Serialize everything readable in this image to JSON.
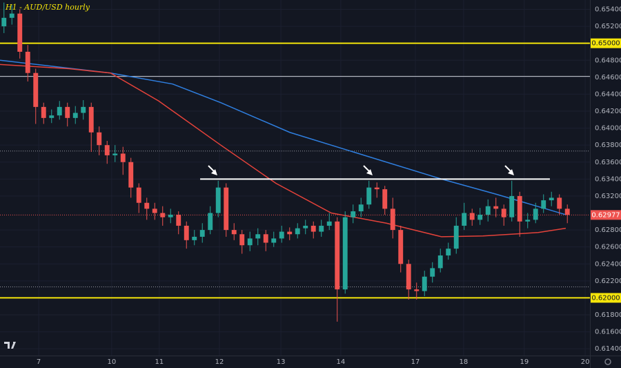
{
  "chart_data": {
    "type": "candlestick",
    "title": "H1 - AUD/USD hourly",
    "up_color": "#26a69a",
    "down_color": "#ef5350",
    "x": [
      2,
      6,
      10,
      14,
      18,
      22,
      26,
      30,
      34,
      38,
      42,
      46,
      50,
      54,
      58,
      62,
      66,
      70,
      74,
      78,
      82,
      86,
      90,
      94,
      98,
      102,
      106,
      110,
      114,
      118,
      122,
      126,
      130,
      134,
      138,
      142,
      146,
      150,
      154,
      158,
      162,
      166,
      170,
      174,
      178,
      182,
      186,
      190,
      194,
      198,
      202,
      206,
      210,
      214,
      218,
      222,
      226,
      230,
      234,
      238,
      242,
      246,
      250,
      254,
      258,
      262,
      266,
      270,
      274,
      278,
      282,
      286
    ],
    "open": [
      0.652,
      0.653,
      0.6535,
      0.649,
      0.6465,
      0.6425,
      0.6412,
      0.6415,
      0.6425,
      0.6412,
      0.6418,
      0.6425,
      0.6395,
      0.638,
      0.6368,
      0.637,
      0.636,
      0.633,
      0.6312,
      0.6305,
      0.63,
      0.6295,
      0.6298,
      0.6285,
      0.6268,
      0.6272,
      0.628,
      0.63,
      0.633,
      0.628,
      0.6275,
      0.6262,
      0.627,
      0.6275,
      0.6265,
      0.627,
      0.6278,
      0.6275,
      0.6282,
      0.6285,
      0.6278,
      0.6285,
      0.629,
      0.621,
      0.6295,
      0.6302,
      0.631,
      0.633,
      0.6328,
      0.6305,
      0.628,
      0.624,
      0.621,
      0.6208,
      0.6225,
      0.6235,
      0.625,
      0.6258,
      0.6285,
      0.63,
      0.6292,
      0.6298,
      0.6308,
      0.6305,
      0.6295,
      0.632,
      0.629,
      0.6292,
      0.6305,
      0.6315,
      0.6318,
      0.6305
    ],
    "high": [
      0.6548,
      0.6545,
      0.654,
      0.6498,
      0.647,
      0.643,
      0.6422,
      0.6432,
      0.643,
      0.6426,
      0.6433,
      0.643,
      0.6402,
      0.6385,
      0.638,
      0.6378,
      0.6365,
      0.6335,
      0.6318,
      0.6312,
      0.6308,
      0.6305,
      0.6302,
      0.629,
      0.628,
      0.6288,
      0.6308,
      0.6338,
      0.6335,
      0.6288,
      0.628,
      0.6278,
      0.6282,
      0.628,
      0.6278,
      0.6285,
      0.6283,
      0.6288,
      0.6292,
      0.629,
      0.6292,
      0.63,
      0.6295,
      0.6302,
      0.631,
      0.6318,
      0.6338,
      0.6336,
      0.6332,
      0.6318,
      0.6285,
      0.6245,
      0.6218,
      0.6232,
      0.6242,
      0.6258,
      0.6265,
      0.6295,
      0.6312,
      0.6305,
      0.6306,
      0.6316,
      0.6318,
      0.631,
      0.6338,
      0.6325,
      0.63,
      0.6312,
      0.6322,
      0.6325,
      0.6322,
      0.631
    ],
    "low": [
      0.6512,
      0.6522,
      0.6482,
      0.6455,
      0.6405,
      0.6405,
      0.6406,
      0.641,
      0.6402,
      0.6405,
      0.641,
      0.6372,
      0.6368,
      0.6358,
      0.636,
      0.6345,
      0.6318,
      0.63,
      0.6292,
      0.6292,
      0.6285,
      0.6288,
      0.6275,
      0.6258,
      0.6262,
      0.6265,
      0.6275,
      0.6295,
      0.6272,
      0.6268,
      0.6252,
      0.6255,
      0.6262,
      0.6255,
      0.626,
      0.6265,
      0.6268,
      0.627,
      0.6275,
      0.627,
      0.6272,
      0.628,
      0.6172,
      0.6205,
      0.6288,
      0.6295,
      0.6305,
      0.6318,
      0.6298,
      0.627,
      0.623,
      0.6198,
      0.6198,
      0.6202,
      0.6218,
      0.623,
      0.6245,
      0.6252,
      0.628,
      0.6285,
      0.6286,
      0.629,
      0.6295,
      0.6285,
      0.629,
      0.6272,
      0.6282,
      0.6288,
      0.63,
      0.6308,
      0.6298,
      0.6288
    ],
    "close": [
      0.653,
      0.6535,
      0.649,
      0.6465,
      0.6425,
      0.6412,
      0.6415,
      0.6425,
      0.6412,
      0.6418,
      0.6425,
      0.6395,
      0.638,
      0.6368,
      0.637,
      0.636,
      0.633,
      0.6312,
      0.6305,
      0.63,
      0.6295,
      0.6298,
      0.6285,
      0.6268,
      0.6272,
      0.628,
      0.63,
      0.633,
      0.628,
      0.6275,
      0.6262,
      0.627,
      0.6275,
      0.6265,
      0.627,
      0.6278,
      0.6275,
      0.6282,
      0.6285,
      0.6278,
      0.6285,
      0.629,
      0.621,
      0.6295,
      0.6302,
      0.631,
      0.633,
      0.6328,
      0.6305,
      0.628,
      0.624,
      0.621,
      0.6208,
      0.6225,
      0.6235,
      0.625,
      0.6258,
      0.6285,
      0.63,
      0.6292,
      0.6298,
      0.6308,
      0.6305,
      0.6295,
      0.632,
      0.629,
      0.6292,
      0.6305,
      0.6315,
      0.6318,
      0.6305,
      0.62977
    ],
    "moving_averages": [
      {
        "color": "#2f7fe0",
        "x": [
          0,
          55.7,
          87,
          111.3,
          146.1,
          187.8,
          222.6,
          250.4,
          285.2
        ],
        "values": [
          0.648,
          0.6465,
          0.6452,
          0.643,
          0.6395,
          0.6365,
          0.634,
          0.6322,
          0.6298
        ]
      },
      {
        "color": "#e5423a",
        "x": [
          0,
          34.8,
          55.7,
          80,
          111.3,
          139.1,
          167,
          194.8,
          222.6,
          243.5,
          271.3,
          285.2
        ],
        "values": [
          0.6475,
          0.647,
          0.6465,
          0.6432,
          0.638,
          0.6335,
          0.63,
          0.6288,
          0.6272,
          0.6273,
          0.6277,
          0.6282
        ]
      }
    ],
    "levels": [
      {
        "value": 0.65,
        "label": "0.65000",
        "color": "#f5e50a",
        "style": "thick"
      },
      {
        "value": 0.62,
        "label": "0.62000",
        "color": "#f5e50a",
        "style": "thick"
      },
      {
        "value": 0.6461,
        "color": "#d1d4dc",
        "style": "thin"
      },
      {
        "value": 0.6373,
        "color": "#9598a1",
        "style": "dotted"
      },
      {
        "value": 0.6213,
        "color": "#9598a1",
        "style": "dotted"
      }
    ],
    "last_price": {
      "value": 0.62977,
      "label": "0.62977",
      "color": "#ef5350"
    },
    "resistance": {
      "value": 0.634,
      "x": [
        100.9,
        277.2
      ],
      "color": "#ffffff"
    },
    "xlim": [
      0,
      297.4
    ],
    "ylim": [
      0.6132,
      0.6551
    ],
    "xticks": [
      {
        "value": 19.5,
        "label": "7"
      },
      {
        "value": 56.3,
        "label": "10"
      },
      {
        "value": 80.3,
        "label": "11"
      },
      {
        "value": 110.6,
        "label": "12"
      },
      {
        "value": 141.6,
        "label": "13"
      },
      {
        "value": 171.8,
        "label": "14"
      },
      {
        "value": 209.4,
        "label": "17"
      },
      {
        "value": 233.7,
        "label": "18"
      },
      {
        "value": 264.3,
        "label": "19"
      },
      {
        "value": 295.0,
        "label": "20"
      }
    ],
    "yticks": [
      {
        "value": 0.654,
        "label": "0.65400"
      },
      {
        "value": 0.652,
        "label": "0.65200"
      },
      {
        "value": 0.648,
        "label": "0.64800"
      },
      {
        "value": 0.646,
        "label": "0.64600"
      },
      {
        "value": 0.644,
        "label": "0.64400"
      },
      {
        "value": 0.642,
        "label": "0.64200"
      },
      {
        "value": 0.64,
        "label": "0.64000"
      },
      {
        "value": 0.638,
        "label": "0.63800"
      },
      {
        "value": 0.636,
        "label": "0.63600"
      },
      {
        "value": 0.634,
        "label": "0.63400"
      },
      {
        "value": 0.632,
        "label": "0.63200"
      },
      {
        "value": 0.628,
        "label": "0.62800"
      },
      {
        "value": 0.626,
        "label": "0.62600"
      },
      {
        "value": 0.624,
        "label": "0.62400"
      },
      {
        "value": 0.622,
        "label": "0.62200"
      },
      {
        "value": 0.618,
        "label": "0.61800"
      },
      {
        "value": 0.616,
        "label": "0.61600"
      },
      {
        "value": 0.614,
        "label": "0.61400"
      }
    ],
    "grid": true
  }
}
